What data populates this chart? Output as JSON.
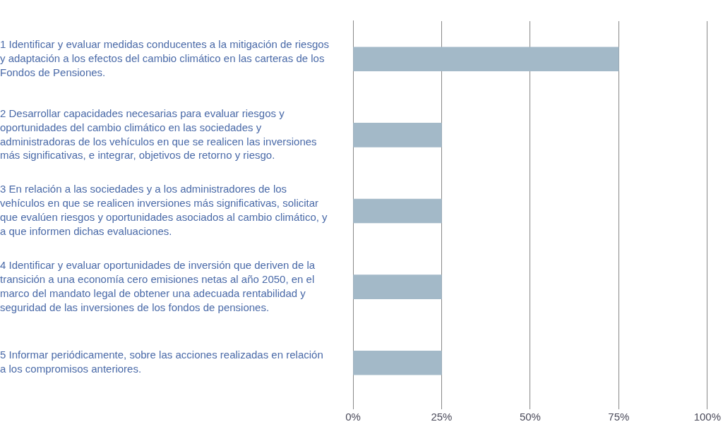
{
  "chart_data": {
    "type": "bar",
    "orientation": "horizontal",
    "categories": [
      "1 Identificar y evaluar medidas conducentes a la mitigación de riesgos y adaptación a los efectos del cambio climático en las carteras de los Fondos de Pensiones.",
      "2 Desarrollar capacidades necesarias para evaluar riesgos y oportunidades del cambio climático en las sociedades y administradoras de los vehículos en que se realicen las inversiones más significativas, e integrar, objetivos de retorno y riesgo.",
      "3 En relación a las sociedades y a los administradores de los vehículos en que se realicen inversiones más significativas, solicitar que evalúen riesgos y oportunidades asociados al cambio climático, y a que informen dichas evaluaciones.",
      "4 Identificar y evaluar oportunidades de inversión que deriven de la transición a una economía cero emisiones netas al año 2050, en el marco del mandato legal de obtener una adecuada rentabilidad y seguridad de las inversiones de los fondos de pensiones.",
      "5 Informar periódicamente, sobre las acciones realizadas en relación a los compromisos anteriores."
    ],
    "values": [
      75,
      25,
      25,
      25,
      25
    ],
    "color": "#a3b9c8",
    "xlim": [
      0,
      100
    ],
    "xticks": [
      {
        "value": 0,
        "label": "0%"
      },
      {
        "value": 25,
        "label": "25%"
      },
      {
        "value": 50,
        "label": "50%"
      },
      {
        "value": 75,
        "label": "75%"
      },
      {
        "value": 100,
        "label": "100%"
      }
    ],
    "grid": "x"
  }
}
